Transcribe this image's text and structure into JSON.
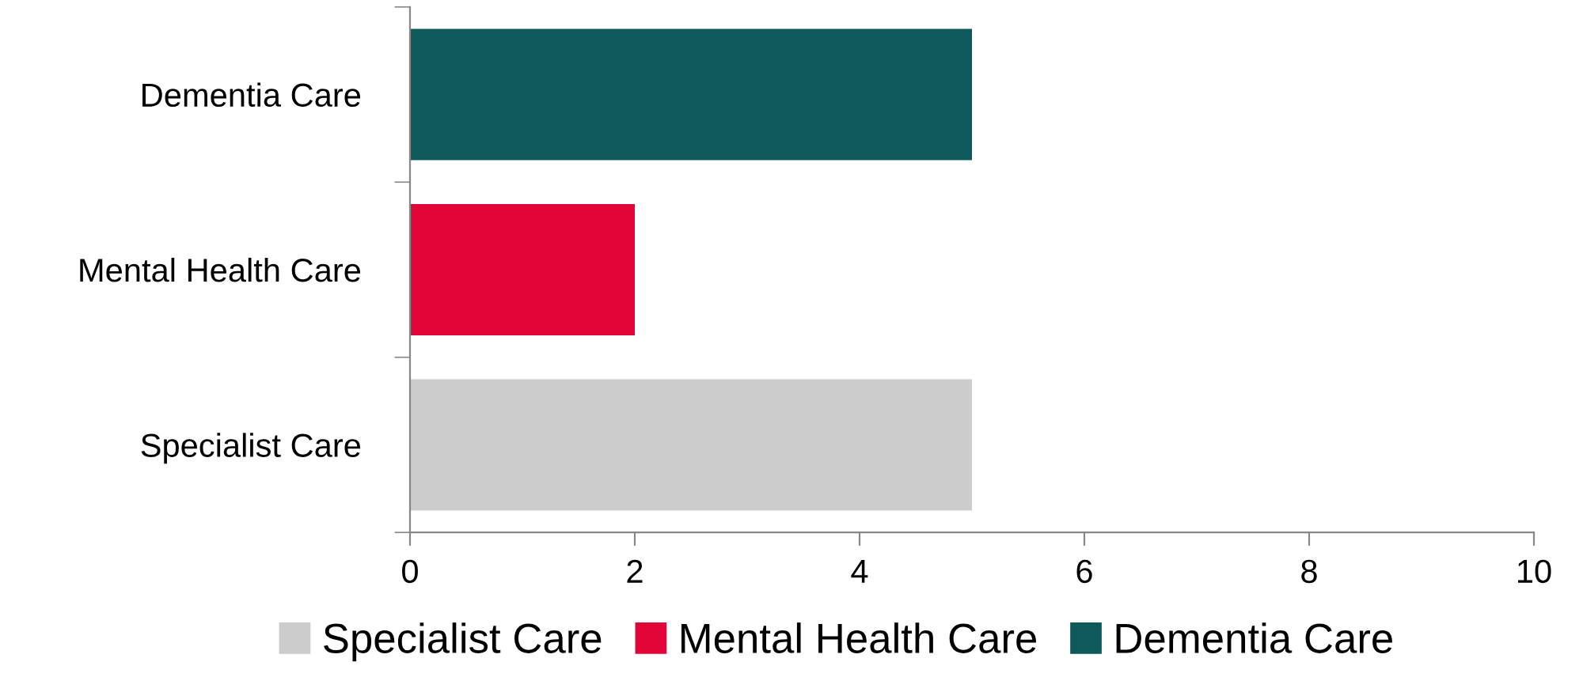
{
  "chart_data": {
    "type": "bar",
    "orientation": "horizontal",
    "categories": [
      "Dementia Care",
      "Mental Health Care",
      "Specialist Care"
    ],
    "series": [
      {
        "name": "Specialist Care",
        "color": "#cccccc",
        "values": [
          null,
          null,
          5
        ]
      },
      {
        "name": "Mental Health Care",
        "color": "#e30537",
        "values": [
          null,
          2,
          null
        ]
      },
      {
        "name": "Dementia Care",
        "color": "#0e5a5b",
        "values": [
          5,
          null,
          null
        ]
      }
    ],
    "xlim": [
      0,
      10
    ],
    "xticks": [
      0,
      2,
      4,
      6,
      8,
      10
    ],
    "grid": false,
    "legend": "bottom"
  }
}
